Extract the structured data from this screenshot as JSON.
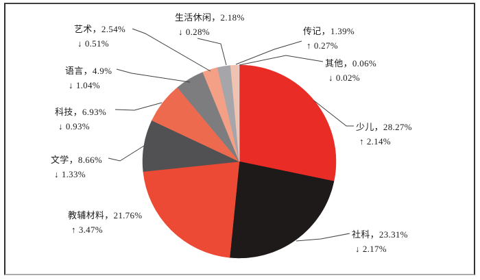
{
  "chart_data": {
    "type": "pie",
    "title": "",
    "legend_position": "none",
    "comma": "，",
    "percent": "%",
    "label_content": "category name, share %, year-over-year change %",
    "slices": [
      {
        "name": "少儿",
        "value": 28.27,
        "arrow": "↑",
        "change": 2.14,
        "color": "#e92c26"
      },
      {
        "name": "社科",
        "value": 23.31,
        "arrow": "↓",
        "change": 2.17,
        "color": "#1e1a19"
      },
      {
        "name": "教辅材料",
        "value": 21.76,
        "arrow": "↑",
        "change": 3.47,
        "color": "#ed4a35"
      },
      {
        "name": "文学",
        "value": 8.66,
        "arrow": "↓",
        "change": 1.33,
        "color": "#515153"
      },
      {
        "name": "科技",
        "value": 6.93,
        "arrow": "↓",
        "change": 0.93,
        "color": "#ee6a4e"
      },
      {
        "name": "语言",
        "value": 4.9,
        "arrow": "↓",
        "change": 1.04,
        "color": "#7d7d80"
      },
      {
        "name": "艺术",
        "value": 2.54,
        "arrow": "↓",
        "change": 0.51,
        "color": "#f4a087"
      },
      {
        "name": "生活休闲",
        "value": 2.18,
        "arrow": "↓",
        "change": 0.28,
        "color": "#a6a6aa"
      },
      {
        "name": "传记",
        "value": 1.39,
        "arrow": "↑",
        "change": 0.27,
        "color": "#f0c2b2"
      },
      {
        "name": "其他",
        "value": 0.06,
        "arrow": "↓",
        "change": 0.02,
        "color": "#dcdcdc"
      }
    ]
  }
}
